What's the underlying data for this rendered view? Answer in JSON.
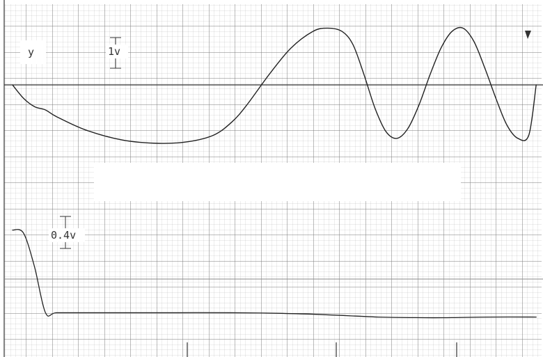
{
  "chart_data": {
    "type": "line",
    "title": "",
    "panels": [
      {
        "channel_label": "y",
        "scale_label": "1v",
        "series": [
          {
            "x": [
              0,
              0.03,
              0.06,
              0.09,
              0.12,
              0.2,
              0.3,
              0.4,
              0.48,
              0.55,
              0.6,
              0.64,
              0.7,
              0.76,
              0.82,
              0.86,
              0.9,
              0.93,
              0.96,
              0.99,
              1.02,
              1.05,
              1.08,
              1.11,
              1.14,
              1.17,
              1.2,
              1.23,
              1.26,
              1.29,
              1.32,
              1.35,
              1.38,
              1.41,
              1.43
            ],
            "y": [
              0,
              -0.4,
              -0.65,
              -0.75,
              -0.95,
              -1.35,
              -1.65,
              -1.75,
              -1.7,
              -1.5,
              -1.1,
              -0.6,
              0.3,
              1.1,
              1.6,
              1.7,
              1.6,
              1.2,
              0.3,
              -0.7,
              -1.4,
              -1.6,
              -1.3,
              -0.6,
              0.3,
              1.1,
              1.6,
              1.7,
              1.3,
              0.5,
              -0.4,
              -1.2,
              -1.6,
              -1.5,
              0
            ]
          }
        ]
      },
      {
        "channel_label": "",
        "scale_label": "0.4v",
        "series": [
          {
            "x": [
              0,
              0.03,
              0.06,
              0.09,
              0.12,
              0.2,
              0.4,
              0.6,
              0.8,
              1.0,
              1.1,
              1.2,
              1.3,
              1.43
            ],
            "y": [
              0.8,
              0.75,
              0.2,
              -0.55,
              -0.55,
              -0.55,
              -0.55,
              -0.55,
              -0.57,
              -0.62,
              -0.63,
              -0.63,
              -0.62,
              -0.62
            ]
          }
        ]
      }
    ]
  }
}
